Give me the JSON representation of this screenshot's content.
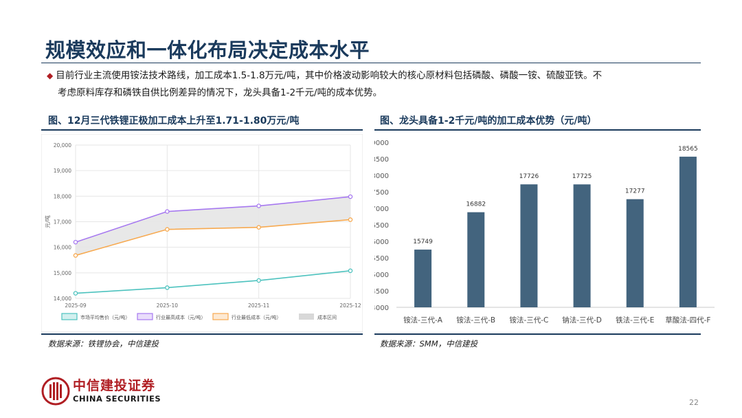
{
  "page": {
    "title": "规模效应和一体化布局决定成本水平",
    "bullet": "目前行业主流使用铵法技术路线，加工成本1.5-1.8万元/吨，其中价格波动影响较大的核心原材料包括磷酸、磷酸一铵、硫酸亚铁。不考虑原料库存和磷铁自供比例差异的情况下，龙头具备1-2千元/吨的成本优势。",
    "bullet_line1": "目前行业主流使用铵法技术路线，加工成本1.5-1.8万元/吨，其中价格波动影响较大的核心原材料包括磷酸、磷酸一铵、硫酸亚铁。不",
    "bullet_line2": "考虑原料库存和磷铁自供比例差异的情况下，龙头具备1-2千元/吨的成本优势。",
    "page_number": "22"
  },
  "left_panel": {
    "title": "图、12月三代铁锂正极加工成本上升至1.71-1.80万元/吨",
    "source": "数据来源：铁锂协会，中信建投"
  },
  "right_panel": {
    "title": "图、龙头具备1-2千元/吨的加工成本优势（元/吨）",
    "source": "数据来源：SMM，中信建投"
  },
  "logo": {
    "cn": "中信建投证券",
    "en": "CHINA SECURITIES"
  },
  "colors": {
    "brand_navy": "#1a3a5c",
    "brand_red": "#b01e23",
    "bar": "#43647e",
    "market": "#4cc2be",
    "high": "#a678f0",
    "low": "#f7a94f",
    "band": "#e6e6e6"
  },
  "chart_data": [
    {
      "type": "line",
      "x": [
        "2025-09",
        "2025-10",
        "2025-11",
        "2025-12"
      ],
      "ylabel": "元/吨",
      "ylim": [
        14000,
        20000
      ],
      "yticks": [
        "14,000",
        "15,000",
        "16,000",
        "17,000",
        "18,000",
        "19,000",
        "20,000"
      ],
      "grid": true,
      "legend_position": "bottom",
      "series": [
        {
          "name": "市场平均售价（元/吨）",
          "values": [
            14200,
            14420,
            14700,
            15080
          ],
          "color": "#4cc2be"
        },
        {
          "name": "行业最高成本（元/吨）",
          "values": [
            16200,
            17400,
            17620,
            17980
          ],
          "color": "#a678f0"
        },
        {
          "name": "行业最低成本（元/吨）",
          "values": [
            15680,
            16700,
            16780,
            17080
          ],
          "color": "#f7a94f"
        }
      ],
      "band": {
        "name": "成本区间",
        "between": [
          "行业最低成本（元/吨）",
          "行业最高成本（元/吨）"
        ],
        "color": "#e6e6e6"
      }
    },
    {
      "type": "bar",
      "categories": [
        "铵法-三代-A",
        "铵法-三代-B",
        "铵法-三代-C",
        "钠法-三代-D",
        "铁法-三代-E",
        "草酸法-四代-F"
      ],
      "values": [
        15749,
        16882,
        17726,
        17725,
        17277,
        18565
      ],
      "data_labels": [
        "15749",
        "16882",
        "17726",
        "17725",
        "17277",
        "18565"
      ],
      "ylim": [
        14000,
        19000
      ],
      "yticks": [
        "14000",
        "14500",
        "15000",
        "15500",
        "16000",
        "16500",
        "17000",
        "17500",
        "18000",
        "18500",
        "19000"
      ],
      "grid": false,
      "color": "#43647e"
    }
  ]
}
